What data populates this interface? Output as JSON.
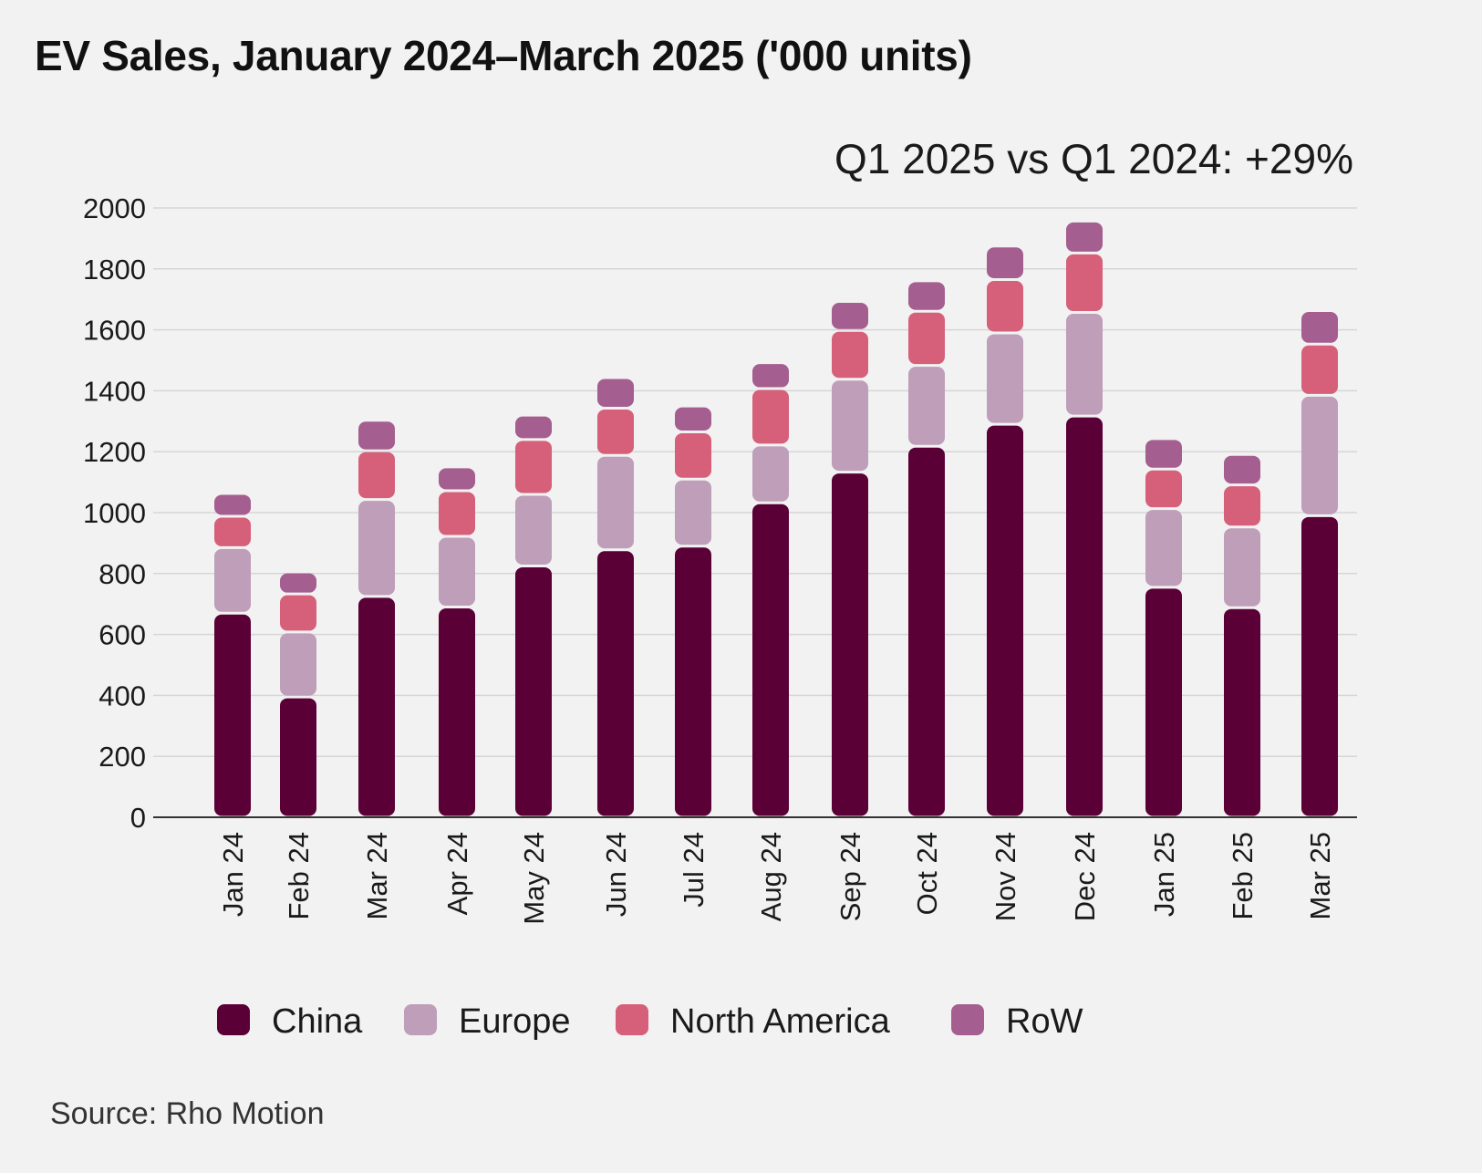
{
  "title": "EV Sales, January 2024–March 2025 ('000 units)",
  "source": "Source: Rho Motion",
  "chart_data": {
    "type": "bar",
    "stacked": true,
    "title": "EV Sales, January 2024–March 2025 ('000 units)",
    "annotation": "Q1 2025 vs Q1 2024: +29%",
    "xlabel": "",
    "ylabel": "",
    "ylim": [
      0,
      2000
    ],
    "yticks": [
      0,
      200,
      400,
      600,
      800,
      1000,
      1200,
      1400,
      1600,
      1800,
      2000
    ],
    "grid": true,
    "legend_position": "bottom",
    "categories": [
      "Jan 24",
      "Feb 24",
      "Mar 24",
      "Apr 24",
      "May 24",
      "Jun 24",
      "Jul 24",
      "Aug 24",
      "Sep 24",
      "Oct 24",
      "Nov 24",
      "Dec 24",
      "Jan 25",
      "Feb 25",
      "Mar 25"
    ],
    "series": [
      {
        "name": "China",
        "color": "#5a0036",
        "values": [
          670,
          395,
          725,
          690,
          825,
          878,
          890,
          1032,
          1133,
          1218,
          1290,
          1317,
          755,
          688,
          990
        ]
      },
      {
        "name": "Europe",
        "color": "#be9eb8",
        "values": [
          215,
          213,
          318,
          232,
          235,
          310,
          220,
          190,
          305,
          265,
          300,
          340,
          258,
          265,
          395
        ]
      },
      {
        "name": "North America",
        "color": "#d65f7a",
        "values": [
          103,
          125,
          160,
          150,
          180,
          155,
          155,
          185,
          160,
          178,
          175,
          195,
          130,
          138,
          168
        ]
      },
      {
        "name": "RoW",
        "color": "#a45e8f",
        "values": [
          75,
          72,
          100,
          78,
          80,
          100,
          85,
          85,
          95,
          100,
          110,
          105,
          100,
          100,
          110
        ]
      }
    ]
  }
}
